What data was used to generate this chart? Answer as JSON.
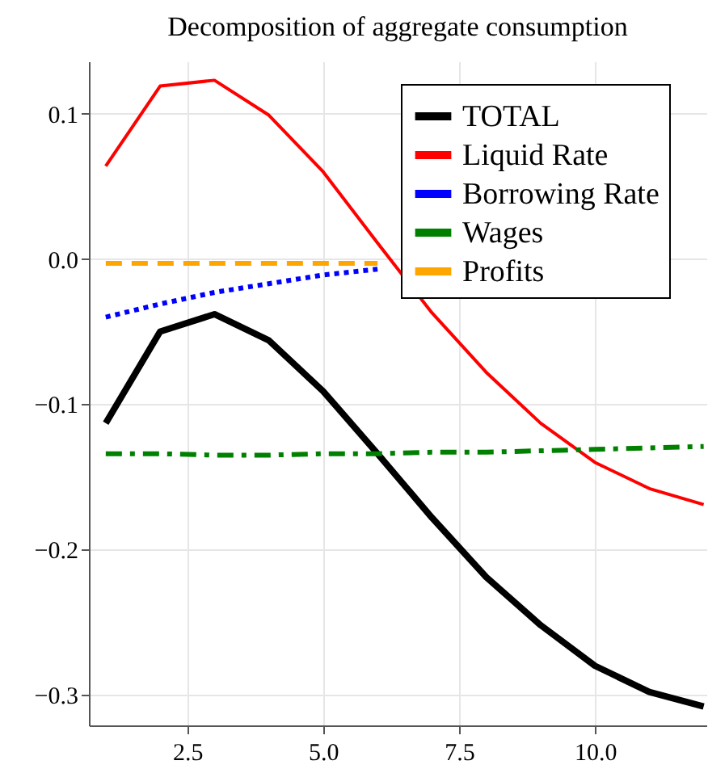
{
  "chart_data": {
    "type": "line",
    "title": "Decomposition of aggregate consumption",
    "x": [
      1,
      2,
      3,
      4,
      5,
      6,
      7,
      8,
      9,
      10,
      11,
      12
    ],
    "series": [
      {
        "name": "TOTAL",
        "color": "#000000",
        "line_style": "solid",
        "values": [
          -0.113,
          -0.05,
          -0.038,
          -0.056,
          -0.091,
          -0.134,
          -0.178,
          -0.219,
          -0.252,
          -0.28,
          -0.298,
          -0.308
        ]
      },
      {
        "name": "Liquid Rate",
        "color": "#ff0000",
        "line_style": "solid",
        "values": [
          0.064,
          0.119,
          0.123,
          0.099,
          0.06,
          0.011,
          -0.037,
          -0.078,
          -0.113,
          -0.14,
          -0.158,
          -0.169
        ]
      },
      {
        "name": "Borrowing Rate",
        "color": "#0000ff",
        "line_style": "dotted",
        "values": [
          -0.04,
          -0.031,
          -0.023,
          -0.017,
          -0.011,
          -0.007,
          null,
          null,
          null,
          null,
          null,
          null
        ]
      },
      {
        "name": "Wages",
        "color": "#008000",
        "line_style": "dashdot",
        "values": [
          -0.134,
          -0.134,
          -0.135,
          -0.135,
          -0.134,
          -0.134,
          -0.133,
          -0.133,
          -0.132,
          -0.131,
          -0.13,
          -0.129
        ]
      },
      {
        "name": "Profits",
        "color": "#ffa500",
        "line_style": "dashed",
        "values": [
          -0.003,
          -0.003,
          -0.003,
          -0.003,
          -0.003,
          -0.003,
          null,
          null,
          null,
          null,
          null,
          null
        ]
      }
    ],
    "xlim": [
      0.69,
      12.05
    ],
    "ylim": [
      -0.321,
      0.136
    ],
    "xticks": [
      2.5,
      {
        "value": 5,
        "label": "5.0"
      },
      7.5,
      {
        "value": 10,
        "label": "10.0"
      }
    ],
    "yticks": [
      {
        "value": -0.3,
        "label": "−0.3"
      },
      {
        "value": -0.2,
        "label": "−0.2"
      },
      {
        "value": -0.1,
        "label": "−0.1"
      },
      {
        "value": 0,
        "label": "0.0"
      },
      0.1
    ],
    "grid": true,
    "legend": "top right",
    "marker": "none"
  }
}
